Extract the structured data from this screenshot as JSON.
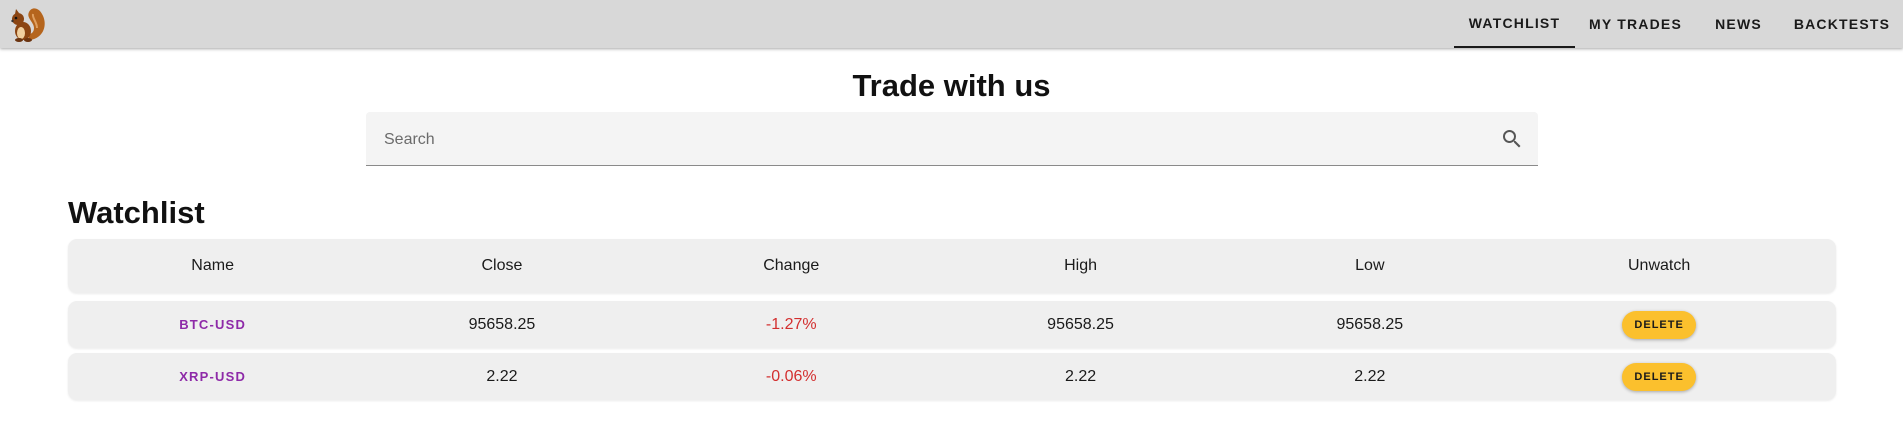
{
  "nav": {
    "logo_icon": "squirrel-icon",
    "tabs": [
      {
        "label": "WATCHLIST",
        "active": true
      },
      {
        "label": "MY TRADES",
        "active": false
      },
      {
        "label": "NEWS",
        "active": false
      },
      {
        "label": "BACKTESTS",
        "active": false
      }
    ]
  },
  "page": {
    "title": "Trade with us"
  },
  "search": {
    "placeholder": "Search",
    "value": "",
    "icon": "search-icon"
  },
  "watchlist": {
    "title": "Watchlist",
    "columns": [
      "Name",
      "Close",
      "Change",
      "High",
      "Low",
      "Unwatch"
    ],
    "rows": [
      {
        "name": "BTC-USD",
        "close": "95658.25",
        "change": "-1.27%",
        "high": "95658.25",
        "low": "95658.25",
        "action": "DELETE"
      },
      {
        "name": "XRP-USD",
        "close": "2.22",
        "change": "-0.06%",
        "high": "2.22",
        "low": "2.22",
        "action": "DELETE"
      }
    ]
  },
  "colors": {
    "topbar": "#d8d8d8",
    "ticker_text": "#8e2aa8",
    "negative_change": "#d32f2f",
    "delete_button": "#fbc02d",
    "row_background": "#efefef"
  }
}
